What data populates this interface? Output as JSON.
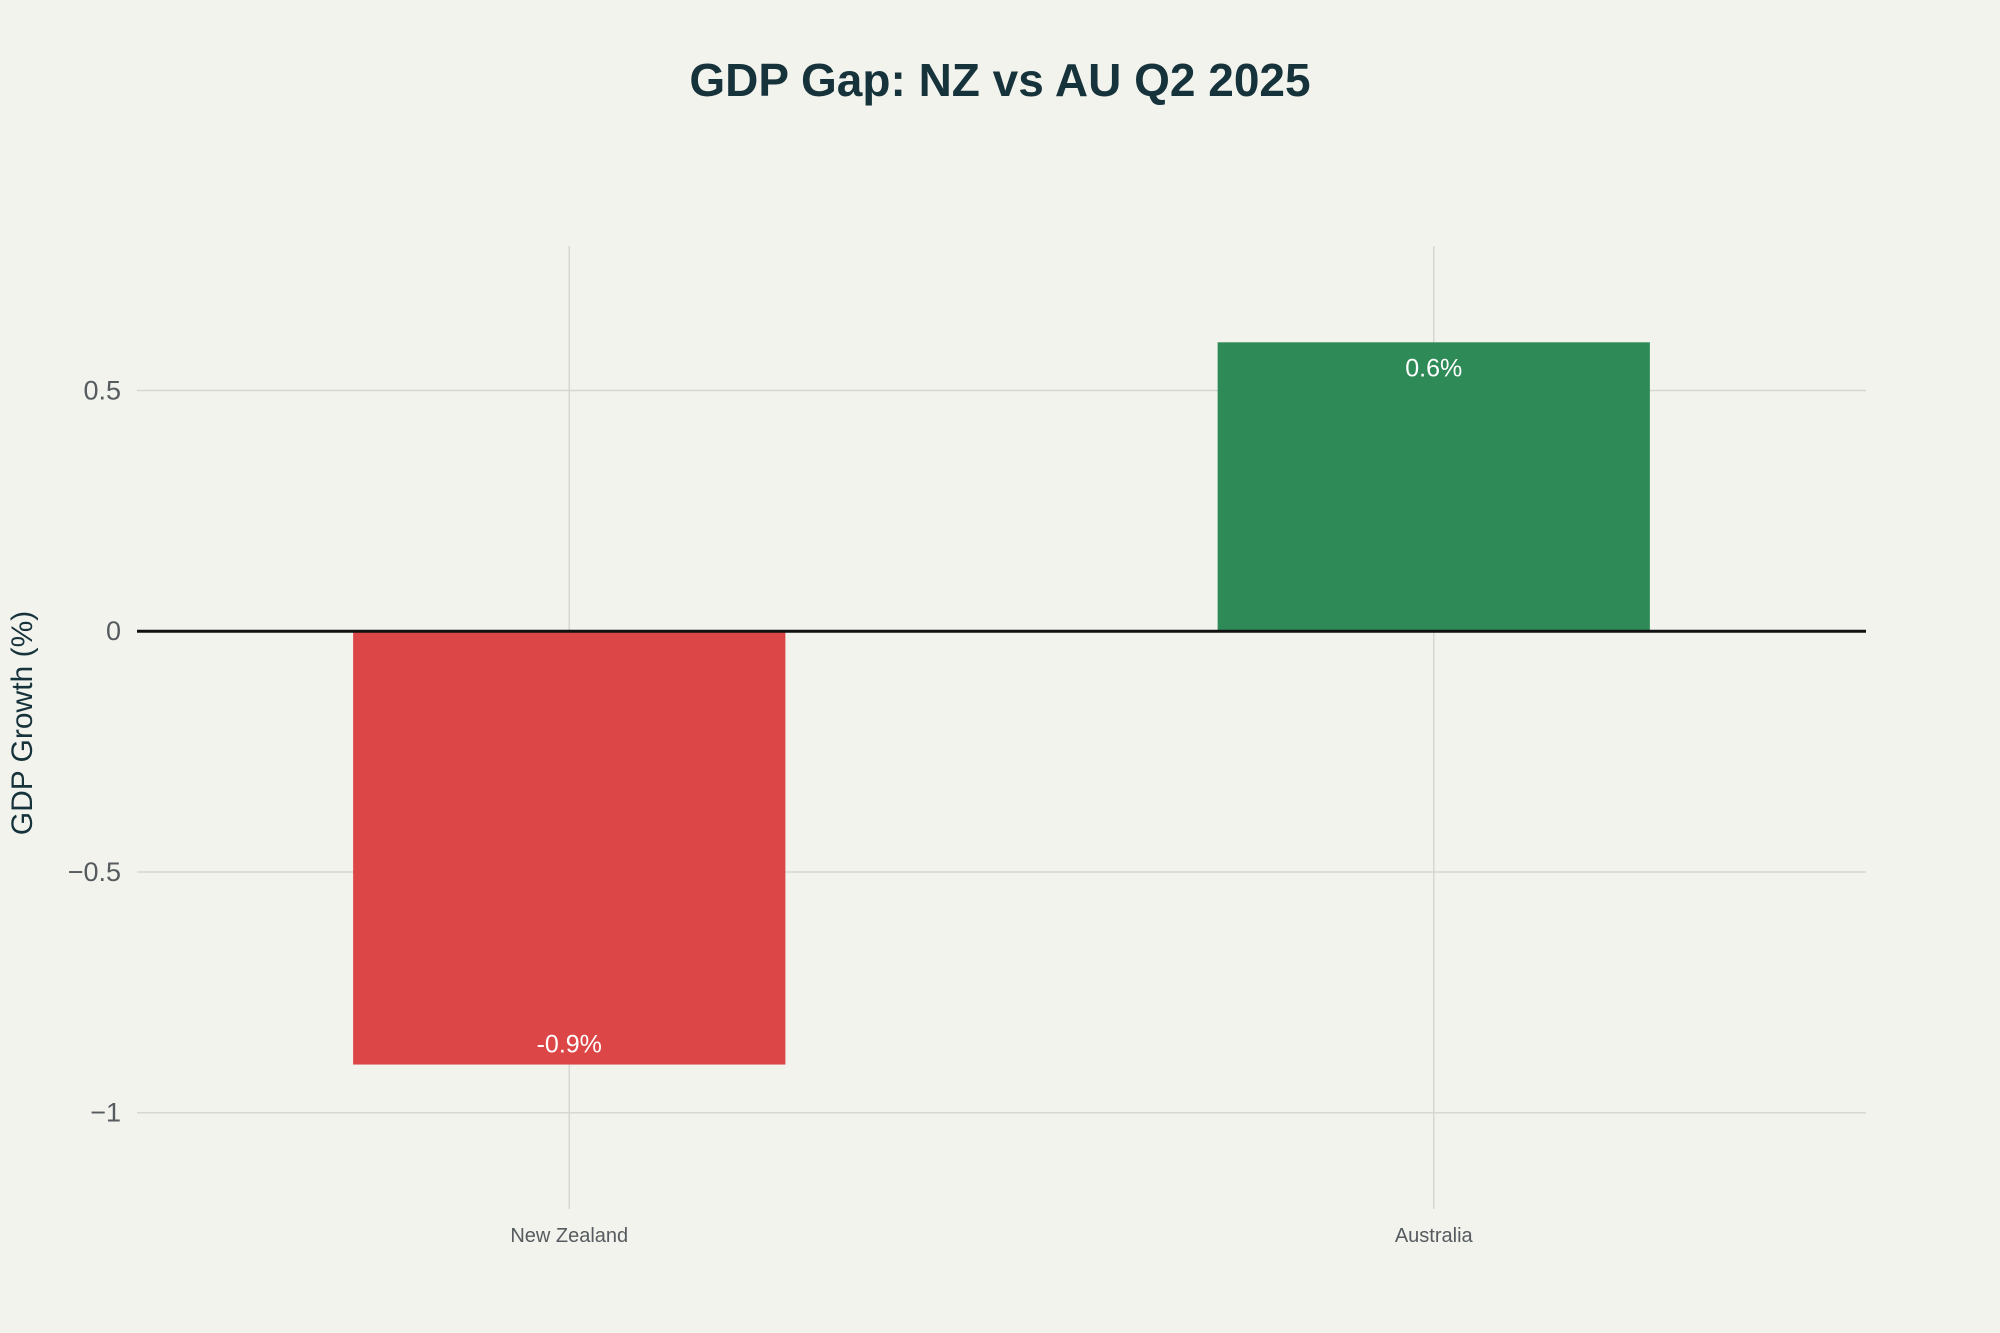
{
  "chart_data": {
    "type": "bar",
    "title": "GDP Gap: NZ vs AU Q2 2025",
    "xlabel": "",
    "ylabel": "GDP Growth (%)",
    "categories": [
      "New Zealand",
      "Australia"
    ],
    "values": [
      -0.9,
      0.6
    ],
    "bar_labels": [
      "-0.9%",
      "0.6%"
    ],
    "colors": [
      "#DC4646",
      "#2E8B57"
    ],
    "ylim": [
      -1.2,
      0.8
    ],
    "yticks": [
      0.5,
      0,
      -0.5,
      -1
    ],
    "ytick_labels": [
      "0.5",
      "0",
      "−0.5",
      "−1"
    ],
    "grid": true,
    "legend": "none"
  }
}
